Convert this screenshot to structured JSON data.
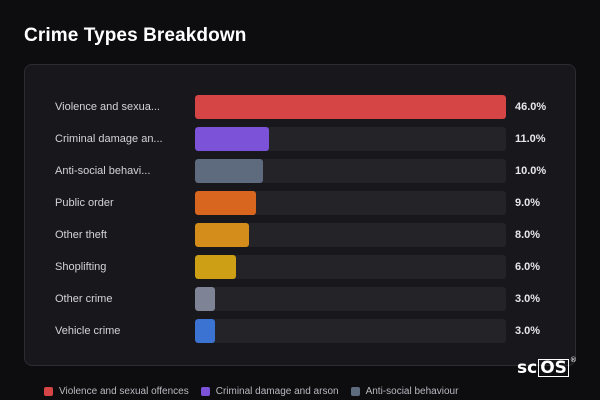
{
  "page": {
    "title": "Crime Types Breakdown"
  },
  "chart_data": {
    "type": "bar",
    "title": "Crime Types Breakdown",
    "categories": [
      "Violence and sexua...",
      "Criminal damage an...",
      "Anti-social behavi...",
      "Public order",
      "Other theft",
      "Shoplifting",
      "Other crime",
      "Vehicle crime"
    ],
    "values": [
      46.0,
      11.0,
      10.0,
      9.0,
      8.0,
      6.0,
      3.0,
      3.0
    ],
    "value_labels": [
      "46.0%",
      "11.0%",
      "10.0%",
      "9.0%",
      "8.0%",
      "6.0%",
      "3.0%",
      "3.0%"
    ],
    "colors": [
      "#d64545",
      "#7b52d8",
      "#5e6a7e",
      "#d9661f",
      "#d48d1a",
      "#cc9f14",
      "#7e8496",
      "#3b73d3"
    ],
    "xlim": [
      0,
      46.0
    ],
    "orientation": "horizontal"
  },
  "legend": [
    {
      "label": "Violence and sexual offences",
      "color": "#d64545"
    },
    {
      "label": "Criminal damage and arson",
      "color": "#7b52d8"
    },
    {
      "label": "Anti-social behaviour",
      "color": "#5e6a7e"
    }
  ],
  "brand": {
    "prefix": "sc",
    "boxed": "OS",
    "mark": "®"
  }
}
